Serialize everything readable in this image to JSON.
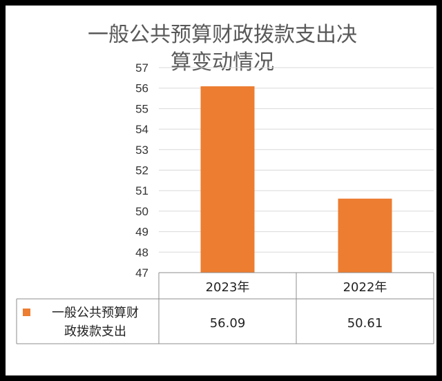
{
  "chart_data": {
    "type": "bar",
    "title_lines": [
      "一般公共预算财政拨款支出决",
      "算变动情况"
    ],
    "categories": [
      "2023年",
      "2022年"
    ],
    "series": [
      {
        "name_lines": [
          "一般公共预算财",
          "政拨款支出"
        ],
        "values": [
          56.09,
          50.61
        ],
        "color": "#ED7D31"
      }
    ],
    "ylim": [
      47,
      57
    ],
    "yticks": [
      47,
      48,
      49,
      50,
      51,
      52,
      53,
      54,
      55,
      56,
      57
    ],
    "data_table": [
      "56.09",
      "50.61"
    ],
    "grid": true,
    "legend": "data-table"
  }
}
